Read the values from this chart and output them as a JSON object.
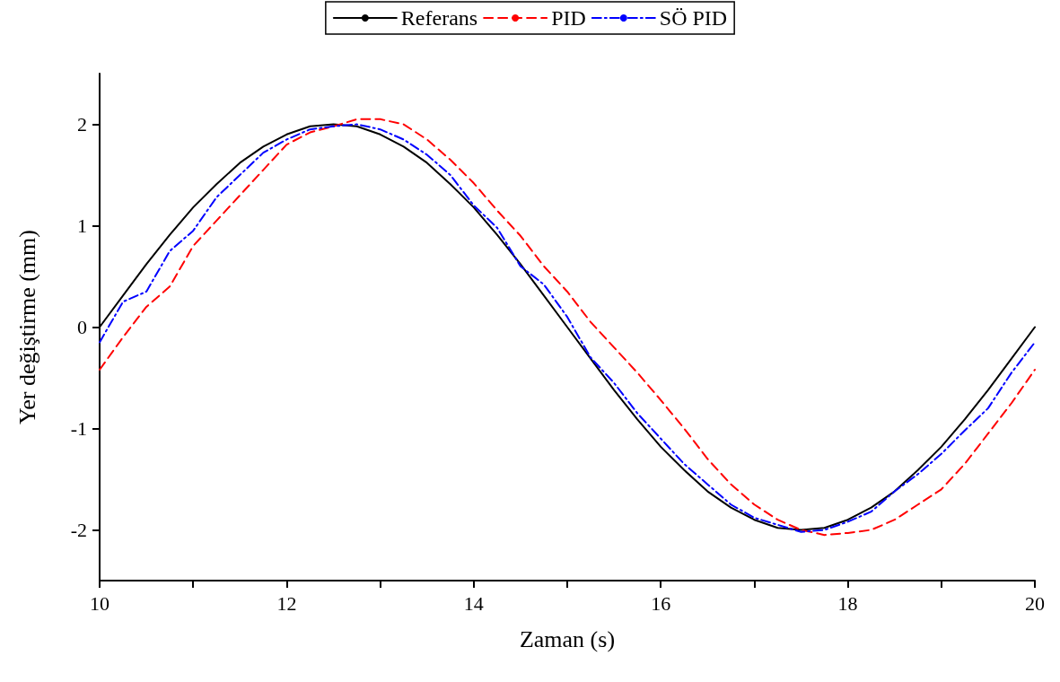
{
  "chart_data": {
    "type": "line",
    "xlabel": "Zaman (s)",
    "ylabel": "Yer değiştirme (mm)",
    "xlim": [
      10,
      20
    ],
    "xticks": [
      10,
      {
        "value": 11,
        "label": null
      },
      12,
      {
        "value": 13,
        "label": null
      },
      14,
      {
        "value": 15,
        "label": null
      },
      16,
      {
        "value": 17,
        "label": null
      },
      18,
      {
        "value": 19,
        "label": null
      },
      20
    ],
    "ylim": [
      -2.5,
      2.5
    ],
    "yticks": [
      -2,
      -1,
      0,
      1,
      2
    ],
    "grid": false,
    "legend": "top",
    "marker": "none",
    "x": [
      10,
      10.25,
      10.5,
      10.75,
      11,
      11.25,
      11.5,
      11.75,
      12,
      12.25,
      12.5,
      12.75,
      13,
      13.25,
      13.5,
      13.75,
      14,
      14.25,
      14.5,
      14.75,
      15,
      15.25,
      15.5,
      15.75,
      16,
      16.25,
      16.5,
      16.75,
      17,
      17.25,
      17.5,
      17.75,
      18,
      18.25,
      18.5,
      18.75,
      19,
      19.25,
      19.5,
      19.75,
      20
    ],
    "series": [
      {
        "name": "Referans",
        "color": "#000000",
        "line_style": "solid",
        "values": [
          0,
          0.31,
          0.62,
          0.91,
          1.18,
          1.41,
          1.62,
          1.78,
          1.9,
          1.98,
          2,
          1.98,
          1.9,
          1.78,
          1.62,
          1.41,
          1.18,
          0.91,
          0.62,
          0.31,
          0,
          -0.31,
          -0.62,
          -0.91,
          -1.18,
          -1.41,
          -1.62,
          -1.78,
          -1.9,
          -1.98,
          -2,
          -1.98,
          -1.9,
          -1.78,
          -1.62,
          -1.41,
          -1.18,
          -0.91,
          -0.62,
          -0.31,
          0
        ]
      },
      {
        "name": "PID",
        "color": "#ff0000",
        "line_style": "dashed",
        "values": [
          -0.42,
          -0.1,
          0.2,
          0.4,
          0.8,
          1.05,
          1.3,
          1.55,
          1.8,
          1.92,
          1.98,
          2.05,
          2.05,
          2.0,
          1.85,
          1.65,
          1.42,
          1.15,
          0.9,
          0.6,
          0.35,
          0.05,
          -0.2,
          -0.45,
          -0.72,
          -1.0,
          -1.3,
          -1.55,
          -1.75,
          -1.9,
          -2.0,
          -2.05,
          -2.03,
          -2.0,
          -1.9,
          -1.75,
          -1.6,
          -1.35,
          -1.05,
          -0.75,
          -0.42
        ]
      },
      {
        "name": "SÖ PID",
        "color": "#0000ff",
        "line_style": "dashdot",
        "values": [
          -0.15,
          0.25,
          0.35,
          0.75,
          0.95,
          1.28,
          1.5,
          1.72,
          1.85,
          1.95,
          1.98,
          2.0,
          1.95,
          1.85,
          1.7,
          1.5,
          1.2,
          0.98,
          0.6,
          0.42,
          0.1,
          -0.3,
          -0.55,
          -0.85,
          -1.1,
          -1.35,
          -1.55,
          -1.75,
          -1.88,
          -1.95,
          -2.02,
          -2.0,
          -1.92,
          -1.82,
          -1.62,
          -1.45,
          -1.25,
          -1.02,
          -0.8,
          -0.45,
          -0.15
        ]
      }
    ]
  }
}
